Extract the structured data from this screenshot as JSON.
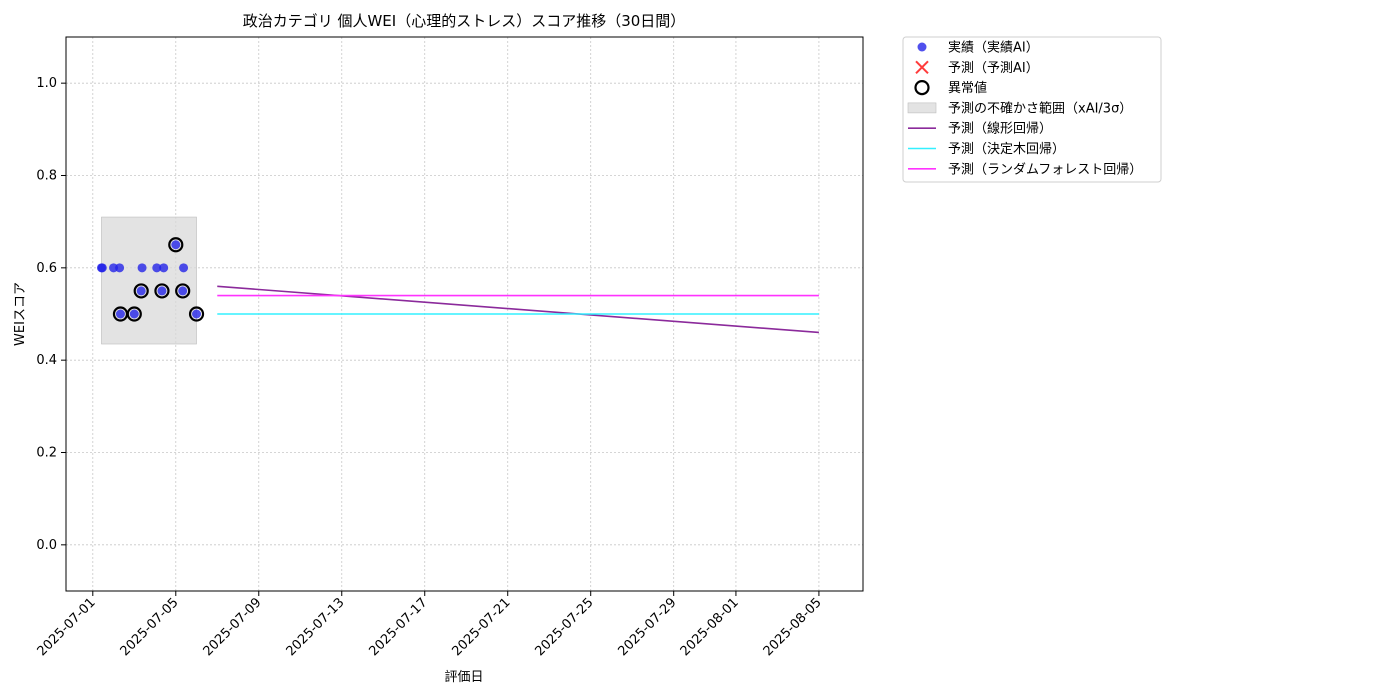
{
  "chart_data": {
    "type": "scatter",
    "title": "政治カテゴリ 個人WEI（心理的ストレス）スコア推移（30日間）",
    "xlabel": "評価日",
    "ylabel": "WEIスコア",
    "xlim": [
      "2025-06-29T17:00",
      "2025-08-07T03:00"
    ],
    "ylim": [
      -0.1,
      1.1
    ],
    "yticks": [
      0.0,
      0.2,
      0.4,
      0.6,
      0.8,
      1.0
    ],
    "ytick_labels": [
      "0.0",
      "0.2",
      "0.4",
      "0.6",
      "0.8",
      "1.0"
    ],
    "xticks": [
      "2025-07-01",
      "2025-07-05",
      "2025-07-09",
      "2025-07-13",
      "2025-07-17",
      "2025-07-21",
      "2025-07-25",
      "2025-07-29",
      "2025-08-01",
      "2025-08-05"
    ],
    "grid": true,
    "legend_position": "outside-upper-right",
    "series": [
      {
        "name": "実績（実績AI）",
        "kind": "scatter",
        "color": "#1f1fe8",
        "points": [
          {
            "x": "2025-07-01T10:00",
            "y": 0.6
          },
          {
            "x": "2025-07-01T11:00",
            "y": 0.6
          },
          {
            "x": "2025-07-02T00:00",
            "y": 0.6
          },
          {
            "x": "2025-07-02T07:00",
            "y": 0.6
          },
          {
            "x": "2025-07-02T08:00",
            "y": 0.5
          },
          {
            "x": "2025-07-03T00:00",
            "y": 0.5
          },
          {
            "x": "2025-07-03T08:00",
            "y": 0.55
          },
          {
            "x": "2025-07-03T09:00",
            "y": 0.6
          },
          {
            "x": "2025-07-04T02:00",
            "y": 0.6
          },
          {
            "x": "2025-07-04T08:00",
            "y": 0.55
          },
          {
            "x": "2025-07-04T10:00",
            "y": 0.6
          },
          {
            "x": "2025-07-05T00:00",
            "y": 0.65
          },
          {
            "x": "2025-07-05T08:00",
            "y": 0.55
          },
          {
            "x": "2025-07-05T09:00",
            "y": 0.6
          },
          {
            "x": "2025-07-06T00:00",
            "y": 0.5
          }
        ]
      },
      {
        "name": "予測（予測AI）",
        "kind": "scatter-x",
        "color": "#ff3b3b",
        "points": []
      },
      {
        "name": "異常値",
        "kind": "outlier-ring",
        "color": "#000000",
        "points": [
          {
            "x": "2025-07-02T08:00",
            "y": 0.5
          },
          {
            "x": "2025-07-03T00:00",
            "y": 0.5
          },
          {
            "x": "2025-07-03T08:00",
            "y": 0.55
          },
          {
            "x": "2025-07-04T08:00",
            "y": 0.55
          },
          {
            "x": "2025-07-05T00:00",
            "y": 0.65
          },
          {
            "x": "2025-07-05T08:00",
            "y": 0.55
          },
          {
            "x": "2025-07-06T00:00",
            "y": 0.5
          }
        ]
      },
      {
        "name": "予測の不確かさ範囲（xAI/3σ）",
        "kind": "band",
        "color": "#d9d9d9",
        "x": [
          "2025-07-01T10:00",
          "2025-07-06T00:00"
        ],
        "y": [
          0.435,
          0.71
        ]
      },
      {
        "name": "予測（線形回帰）",
        "kind": "line",
        "color": "#8b2a9b",
        "points": [
          {
            "x": "2025-07-07T00:00",
            "y": 0.56
          },
          {
            "x": "2025-08-05T00:00",
            "y": 0.46
          }
        ]
      },
      {
        "name": "予測（決定木回帰）",
        "kind": "line",
        "color": "#33f0ff",
        "points": [
          {
            "x": "2025-07-07T00:00",
            "y": 0.5
          },
          {
            "x": "2025-08-05T00:00",
            "y": 0.5
          }
        ]
      },
      {
        "name": "予測（ランダムフォレスト回帰）",
        "kind": "line",
        "color": "#ff33ff",
        "points": [
          {
            "x": "2025-07-07T00:00",
            "y": 0.54
          },
          {
            "x": "2025-08-05T00:00",
            "y": 0.54
          }
        ]
      }
    ]
  }
}
